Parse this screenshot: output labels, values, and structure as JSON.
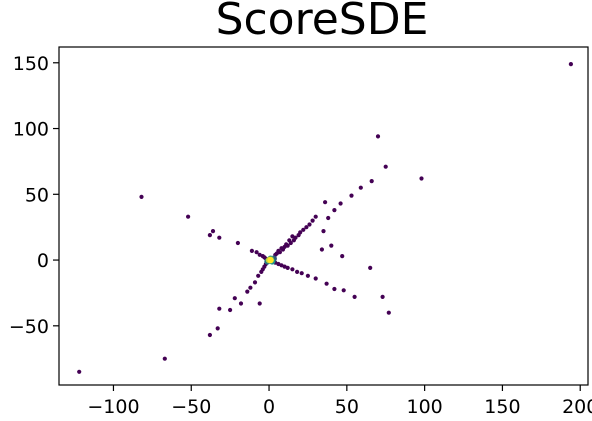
{
  "chart_data": {
    "type": "scatter",
    "title": "ScoreSDE",
    "xlabel": "",
    "ylabel": "",
    "xlim": [
      -135,
      205
    ],
    "ylim": [
      -95,
      162
    ],
    "x_ticks": [
      -100,
      -50,
      0,
      50,
      100,
      150,
      200
    ],
    "y_ticks": [
      -50,
      0,
      50,
      100,
      150
    ],
    "x_tick_labels": [
      "−100",
      "−50",
      "0",
      "50",
      "100",
      "150",
      "200"
    ],
    "y_tick_labels": [
      "−50",
      "0",
      "50",
      "100",
      "150"
    ],
    "grid": false,
    "colormap": "viridis",
    "colors": {
      "low_density": "#440154",
      "mid_density": "#21918c",
      "high_density": "#fde725"
    },
    "points": [
      {
        "x": 194,
        "y": 149,
        "d": 0
      },
      {
        "x": 70,
        "y": 94,
        "d": 0
      },
      {
        "x": 75,
        "y": 71,
        "d": 0
      },
      {
        "x": 98,
        "y": 62,
        "d": 0
      },
      {
        "x": 66,
        "y": 60,
        "d": 0
      },
      {
        "x": 59,
        "y": 55,
        "d": 0
      },
      {
        "x": 53,
        "y": 49,
        "d": 0
      },
      {
        "x": 46,
        "y": 43,
        "d": 0
      },
      {
        "x": 42,
        "y": 38,
        "d": 0
      },
      {
        "x": 36,
        "y": 44,
        "d": 0
      },
      {
        "x": 38,
        "y": 32,
        "d": 0
      },
      {
        "x": 30,
        "y": 33,
        "d": 0
      },
      {
        "x": 28,
        "y": 30,
        "d": 0
      },
      {
        "x": 26,
        "y": 27,
        "d": 0
      },
      {
        "x": 24,
        "y": 25,
        "d": 0
      },
      {
        "x": 22,
        "y": 23,
        "d": 0
      },
      {
        "x": 20,
        "y": 21,
        "d": 0
      },
      {
        "x": 19,
        "y": 19,
        "d": 0
      },
      {
        "x": 17,
        "y": 17,
        "d": 0
      },
      {
        "x": 16,
        "y": 15,
        "d": 0
      },
      {
        "x": 15,
        "y": 18,
        "d": 0
      },
      {
        "x": 14,
        "y": 13,
        "d": 0
      },
      {
        "x": 13,
        "y": 15,
        "d": 0
      },
      {
        "x": 12,
        "y": 11,
        "d": 0
      },
      {
        "x": 11,
        "y": 12,
        "d": 0
      },
      {
        "x": 10,
        "y": 10,
        "d": 0
      },
      {
        "x": 9,
        "y": 8,
        "d": 0
      },
      {
        "x": 8,
        "y": 9,
        "d": 0
      },
      {
        "x": 7,
        "y": 6,
        "d": 0
      },
      {
        "x": 6,
        "y": 7,
        "d": 0
      },
      {
        "x": 5,
        "y": 5,
        "d": 0
      },
      {
        "x": 4,
        "y": 4,
        "d": 0
      },
      {
        "x": 35,
        "y": 22,
        "d": 0
      },
      {
        "x": 40,
        "y": 11,
        "d": 0
      },
      {
        "x": 47,
        "y": 3,
        "d": 0
      },
      {
        "x": 34,
        "y": 8,
        "d": 0
      },
      {
        "x": -82,
        "y": 48,
        "d": 0
      },
      {
        "x": -52,
        "y": 33,
        "d": 0
      },
      {
        "x": -36,
        "y": 22,
        "d": 0
      },
      {
        "x": -38,
        "y": 19,
        "d": 0
      },
      {
        "x": -32,
        "y": 17,
        "d": 0
      },
      {
        "x": -20,
        "y": 13,
        "d": 0
      },
      {
        "x": -11,
        "y": 7,
        "d": 0
      },
      {
        "x": -8,
        "y": 6,
        "d": 0
      },
      {
        "x": -6,
        "y": 4,
        "d": 0
      },
      {
        "x": -4,
        "y": 3,
        "d": 0
      },
      {
        "x": -3,
        "y": 2,
        "d": 0
      },
      {
        "x": -2,
        "y": 1,
        "d": 0
      },
      {
        "x": -122,
        "y": -85,
        "d": 0
      },
      {
        "x": -67,
        "y": -75,
        "d": 0
      },
      {
        "x": -38,
        "y": -57,
        "d": 0
      },
      {
        "x": -33,
        "y": -52,
        "d": 0
      },
      {
        "x": -32,
        "y": -37,
        "d": 0
      },
      {
        "x": -25,
        "y": -38,
        "d": 0
      },
      {
        "x": -22,
        "y": -29,
        "d": 0
      },
      {
        "x": -18,
        "y": -33,
        "d": 0
      },
      {
        "x": -14,
        "y": -24,
        "d": 0
      },
      {
        "x": -12,
        "y": -21,
        "d": 0
      },
      {
        "x": -9,
        "y": -17,
        "d": 0
      },
      {
        "x": -6,
        "y": -33,
        "d": 0
      },
      {
        "x": -7,
        "y": -12,
        "d": 0
      },
      {
        "x": -5,
        "y": -9,
        "d": 0
      },
      {
        "x": -4,
        "y": -7,
        "d": 0
      },
      {
        "x": -3,
        "y": -5,
        "d": 0
      },
      {
        "x": -2,
        "y": -3,
        "d": 0
      },
      {
        "x": 77,
        "y": -40,
        "d": 0
      },
      {
        "x": 73,
        "y": -28,
        "d": 0
      },
      {
        "x": 65,
        "y": -6,
        "d": 0
      },
      {
        "x": 55,
        "y": -28,
        "d": 0
      },
      {
        "x": 48,
        "y": -23,
        "d": 0
      },
      {
        "x": 42,
        "y": -22,
        "d": 0
      },
      {
        "x": 37,
        "y": -18,
        "d": 0
      },
      {
        "x": 30,
        "y": -14,
        "d": 0
      },
      {
        "x": 25,
        "y": -12,
        "d": 0
      },
      {
        "x": 21,
        "y": -10,
        "d": 0
      },
      {
        "x": 18,
        "y": -9,
        "d": 0
      },
      {
        "x": 15,
        "y": -7,
        "d": 0
      },
      {
        "x": 12,
        "y": -6,
        "d": 0
      },
      {
        "x": 10,
        "y": -5,
        "d": 0
      },
      {
        "x": 8,
        "y": -4,
        "d": 0
      },
      {
        "x": 6,
        "y": -3,
        "d": 0
      },
      {
        "x": 4,
        "y": -2,
        "d": 0
      },
      {
        "x": 3,
        "y": 1,
        "d": 0.3
      },
      {
        "x": -1,
        "y": -1,
        "d": 0.4
      },
      {
        "x": 2,
        "y": -1,
        "d": 0.5
      },
      {
        "x": 1,
        "y": 1,
        "d": 0.6
      },
      {
        "x": 0,
        "y": 0,
        "d": 0.85
      },
      {
        "x": 1,
        "y": 0,
        "d": 1
      }
    ]
  }
}
